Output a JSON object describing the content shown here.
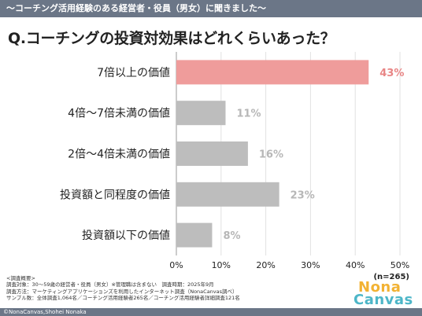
{
  "banner": "〜コーチング活用経験のある経営者・役員（男女）に聞きました〜",
  "question": "Q.コーチングの投資対効果はどれくらいあった？",
  "chart_data": {
    "type": "bar",
    "orientation": "horizontal",
    "categories": [
      "7倍以上の価値",
      "4倍〜7倍未満の価値",
      "2倍〜4倍未満の価値",
      "投資額と同程度の価値",
      "投資額以下の価値"
    ],
    "values": [
      43,
      11,
      16,
      23,
      8
    ],
    "value_labels": [
      "43%",
      "11%",
      "16%",
      "23%",
      "8%"
    ],
    "xlim": [
      0,
      50
    ],
    "xticks": [
      "0%",
      "10%",
      "20%",
      "30%",
      "40%",
      "50%"
    ],
    "grid": true,
    "highlight_index": 0,
    "n_label": "(n=265)"
  },
  "colors": {
    "highlight_bar": "#ef9c9b",
    "bar": "#bdbdbd",
    "highlight_label": "#e88585",
    "label": "#b7b7b7",
    "banner": "#6b7687"
  },
  "notes": [
    "<調査概要>",
    "調査対象：30〜59歳の経営者・役員（男女）※管理職は含まない　調査時期：2025年9月",
    "調査方法：マーケティングアプリケーションズを利用したインターネット調査（NonaCanvas調べ）",
    "サンプル数：全体調査1,064名／コーチング活用経験者265名／コーチング活用経験者詳細調査121名"
  ],
  "credit": "©NonaCanvas,Shohei Nonaka",
  "logo": {
    "line1": "Nona",
    "line2": "Canvas"
  }
}
